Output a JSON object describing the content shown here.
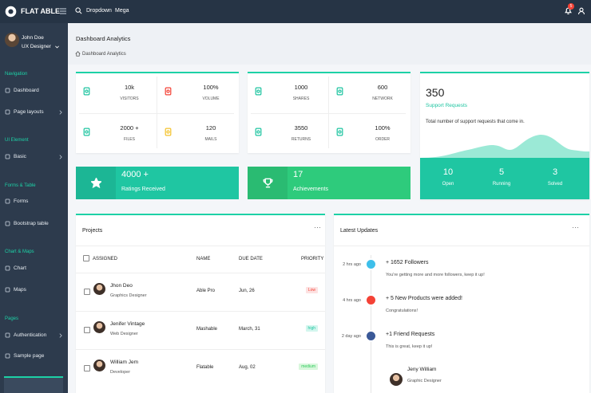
{
  "topbar": {
    "brand": "FLAT ABLE",
    "links": [
      "Dropdown",
      "Mega"
    ],
    "badge": "5"
  },
  "sidebar": {
    "user": {
      "name": "John Doe",
      "role": "UX Designer"
    },
    "sections": [
      {
        "label": "Navigation",
        "items": [
          {
            "text": "Dashboard"
          },
          {
            "text": "Page layouts",
            "arrow": true
          }
        ]
      },
      {
        "label": "UI Element",
        "items": [
          {
            "text": "Basic",
            "arrow": true
          }
        ]
      },
      {
        "label": "Forms & Table",
        "items": [
          {
            "text": "Forms"
          },
          {
            "text": "Bootstrap table"
          }
        ]
      },
      {
        "label": "Chart & Maps",
        "items": [
          {
            "text": "Chart"
          },
          {
            "text": "Maps"
          }
        ]
      },
      {
        "label": "Pages",
        "items": [
          {
            "text": "Authentication",
            "arrow": true
          },
          {
            "text": "Sample page"
          }
        ]
      }
    ]
  },
  "header": {
    "title": "Dashboard Analytics",
    "breadcrumb": "Dashboard Analytics"
  },
  "stats": [
    {
      "cells": [
        {
          "value": "10k",
          "label": "VISITORS",
          "color": "#1dc4a0"
        },
        {
          "value": "100%",
          "label": "VOLUME",
          "color": "#f44236"
        },
        {
          "value": "2000 +",
          "label": "FILES",
          "color": "#1dc4a0"
        },
        {
          "value": "120",
          "label": "MAILS",
          "color": "#f4c22b"
        }
      ]
    },
    {
      "cells": [
        {
          "value": "1000",
          "label": "SHARES",
          "color": "#1dc4a0"
        },
        {
          "value": "600",
          "label": "NETWORK",
          "color": "#1dc4a0"
        },
        {
          "value": "3550",
          "label": "RETURNS",
          "color": "#1dc4a0"
        },
        {
          "value": "100%",
          "label": "ORDER",
          "color": "#1dc4a0"
        }
      ]
    }
  ],
  "support": {
    "value": "350",
    "label": "Support Requests",
    "text": "Total number of support requests that come in.",
    "stats": [
      {
        "value": "10",
        "label": "Open"
      },
      {
        "value": "5",
        "label": "Running"
      },
      {
        "value": "3",
        "label": "Solved"
      }
    ]
  },
  "highlights": [
    {
      "value": "4000 +",
      "label": "Ratings Received",
      "color": "#1fc6a2"
    },
    {
      "value": "17",
      "label": "Achievements",
      "color": "#2ecb7c"
    }
  ],
  "projects": {
    "title": "Projects",
    "columns": [
      "ASSIGNED",
      "NAME",
      "DUE DATE",
      "PRIORITY"
    ],
    "rows": [
      {
        "name": "Jhon Deo",
        "role": "Graphics Designer",
        "project": "Able Pro",
        "due": "Jun, 26",
        "priority": "Low"
      },
      {
        "name": "Jenifer Vintage",
        "role": "Web Designer",
        "project": "Mashable",
        "due": "March, 31",
        "priority": "high"
      },
      {
        "name": "William Jem",
        "role": "Developer",
        "project": "Flatable",
        "due": "Aug, 02",
        "priority": "medium"
      }
    ]
  },
  "updates": {
    "title": "Latest Updates",
    "items": [
      {
        "time": "2 hrs ago",
        "title": "+ 1652 Followers",
        "text": "You're getting more and more followers, keep it up!",
        "color": "#3ebfea"
      },
      {
        "time": "4 hrs ago",
        "title": "+ 5 New Products were added!",
        "text": "Congratulations!",
        "color": "#f44236"
      },
      {
        "time": "2 day ago",
        "title": "+1 Friend Requests",
        "text": "This is great, keep it up!",
        "color": "#3b5998"
      }
    ],
    "person": {
      "name": "Jeny William",
      "role": "Graphic Designer"
    }
  }
}
